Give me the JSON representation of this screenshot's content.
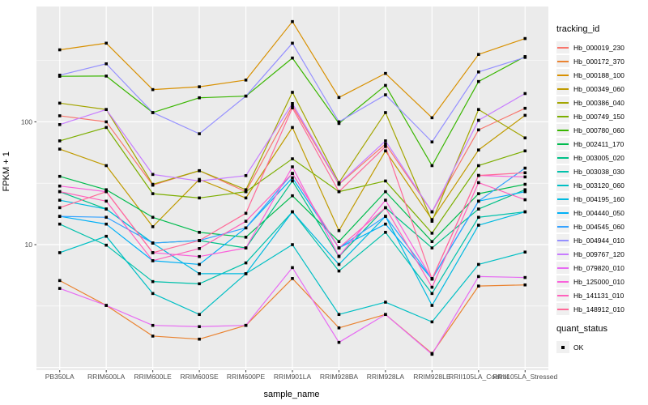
{
  "figure": {
    "y_axis_title": "FPKM + 1",
    "x_axis_title": "sample_name",
    "legend_tracking_title": "tracking_id",
    "legend_quant_title": "quant_status",
    "quant_items": [
      {
        "label": "OK"
      }
    ]
  },
  "style": {
    "panel_bg": "#EBEBEB",
    "gridline": "#FFFFFF",
    "tick_text": "#4D4D4D",
    "marker": "#000000"
  },
  "chart_data": {
    "type": "line",
    "title": "",
    "xlabel": "sample_name",
    "ylabel": "FPKM + 1",
    "y_scale": "log10",
    "ylim": [
      0.95,
      870
    ],
    "y_tick_values": [
      100,
      10
    ],
    "y_major_gridlines": [
      1,
      10,
      100
    ],
    "y_minor_gridlines": [
      3.162,
      31.62,
      316.2
    ],
    "grid": true,
    "legend_position": "right",
    "marker_shape": "filled-square",
    "quant_status_all": "OK",
    "x_categories": [
      "PB350LA",
      "RRIM600LA",
      "RRIM600LE",
      "RRIM600SE",
      "RRIM600PE",
      "RRIM901LA",
      "RRIM928BA",
      "RRIM928LA",
      "RRIM928LE",
      "RRII105LA_Control",
      "RRII105LA_Stressed"
    ],
    "series": [
      {
        "name": "Hb_000019_230",
        "color": "#F8766D",
        "values": [
          112,
          100,
          30.5,
          40,
          27,
          135,
          31,
          66,
          18.5,
          86,
          129
        ]
      },
      {
        "name": "Hb_000172_370",
        "color": "#EA8331",
        "values": [
          5.1,
          3.2,
          1.8,
          1.7,
          2.2,
          5.3,
          2.1,
          2.7,
          1.3,
          4.6,
          4.7
        ]
      },
      {
        "name": "Hb_000188_100",
        "color": "#D89000",
        "values": [
          386,
          437,
          183,
          193,
          219,
          655,
          158,
          248,
          108,
          354,
          477
        ]
      },
      {
        "name": "Hb_000349_060",
        "color": "#C09B00",
        "values": [
          60,
          44,
          14,
          34,
          24,
          90,
          13,
          58,
          16,
          59,
          113
        ]
      },
      {
        "name": "Hb_000386_040",
        "color": "#A3A500",
        "values": [
          142,
          126,
          31,
          40,
          28,
          174,
          32,
          119,
          15.5,
          126,
          74
        ]
      },
      {
        "name": "Hb_000749_150",
        "color": "#7CAE00",
        "values": [
          70,
          90,
          26,
          24,
          27,
          50,
          27,
          33,
          12.4,
          44,
          58
        ]
      },
      {
        "name": "Hb_000780_060",
        "color": "#39B600",
        "values": [
          235,
          236,
          119,
          157,
          162,
          331,
          97,
          198,
          44,
          213,
          340
        ]
      },
      {
        "name": "Hb_002411_170",
        "color": "#00BB4E",
        "values": [
          36,
          28,
          16.7,
          12.6,
          11.5,
          25,
          10.6,
          27,
          10.6,
          26,
          31
        ]
      },
      {
        "name": "Hb_003005_020",
        "color": "#00C087",
        "values": [
          27,
          19.5,
          10.3,
          10.8,
          9.4,
          33,
          8,
          20,
          9.4,
          19.5,
          28
        ]
      },
      {
        "name": "Hb_003038_030",
        "color": "#00C1AB",
        "values": [
          14.7,
          9.9,
          5,
          4.8,
          7.1,
          18.5,
          6.1,
          12.6,
          4,
          16.7,
          18.5
        ]
      },
      {
        "name": "Hb_003120_060",
        "color": "#00BFC4",
        "values": [
          8.6,
          11.7,
          4,
          2.7,
          5.8,
          10,
          2.7,
          3.4,
          2.35,
          6.9,
          8.7
        ]
      },
      {
        "name": "Hb_004195_160",
        "color": "#00BAE0",
        "values": [
          23,
          19.5,
          10.3,
          5.8,
          5.8,
          18.5,
          6.9,
          17,
          3.2,
          14.4,
          18.5
        ]
      },
      {
        "name": "Hb_004440_050",
        "color": "#00B0F6",
        "values": [
          17,
          14.7,
          7.4,
          6.9,
          13.7,
          35,
          9.4,
          14.7,
          5.25,
          22.6,
          27
        ]
      },
      {
        "name": "Hb_004545_060",
        "color": "#35A2FF",
        "values": [
          17,
          16.7,
          10.3,
          10.8,
          13.7,
          38,
          9.4,
          17,
          5.3,
          22.6,
          42
        ]
      },
      {
        "name": "Hb_004944_010",
        "color": "#9590FF",
        "values": [
          240,
          297,
          119,
          80,
          162,
          437,
          100,
          166,
          68.6,
          255,
          335
        ]
      },
      {
        "name": "Hb_009767_120",
        "color": "#C77CFF",
        "values": [
          95,
          126,
          37.3,
          33,
          36.5,
          141,
          31.4,
          70,
          18.5,
          103,
          170
        ]
      },
      {
        "name": "Hb_079820_010",
        "color": "#E76BF3",
        "values": [
          4.4,
          3.2,
          2.2,
          2.15,
          2.2,
          6.5,
          1.6,
          2.7,
          1.28,
          5.5,
          5.4
        ]
      },
      {
        "name": "Hb_125000_010",
        "color": "#FA62DB",
        "values": [
          30,
          27,
          8.6,
          8,
          9.4,
          43,
          8.05,
          23,
          5.25,
          36.6,
          35.6
        ]
      },
      {
        "name": "Hb_141131_010",
        "color": "#FF62BC",
        "values": [
          27,
          22.6,
          7.4,
          9.3,
          15.5,
          38,
          9.4,
          20,
          4.5,
          32,
          23.2
        ]
      },
      {
        "name": "Hb_148912_010",
        "color": "#FF6A98",
        "values": [
          20,
          27,
          8.6,
          10.8,
          18,
          130,
          27,
          63,
          5.25,
          36.6,
          38.5
        ]
      }
    ]
  }
}
